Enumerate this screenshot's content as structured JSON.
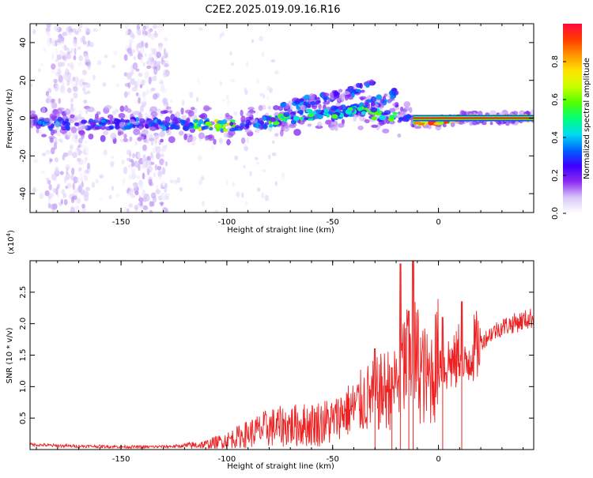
{
  "title": "C2E2.2025.019.09.16.R16",
  "colorbar": {
    "label": "Normalized spectral amplitude",
    "ticks": [
      "0.0",
      "0.2",
      "0.4",
      "0.6",
      "0.8"
    ],
    "tick_values": [
      0.0,
      0.2,
      0.4,
      0.6,
      0.8
    ],
    "colors": [
      "#ffffff",
      "#d8c8f8",
      "#8c2cf0",
      "#3c00ff",
      "#0064ff",
      "#00dcf0",
      "#00ff7a",
      "#50ff00",
      "#c8ff00",
      "#ffe400",
      "#ff9600",
      "#ff3c00",
      "#ff0a3c"
    ]
  },
  "chart_data": [
    {
      "type": "heatmap",
      "title": "C2E2.2025.019.09.16.R16",
      "xlabel": "Height of straight line (km)",
      "ylabel": "Frequency (Hz)",
      "xlim": [
        -193,
        45
      ],
      "ylim": [
        -50,
        50
      ],
      "xticks": [
        -150,
        -100,
        -50,
        0
      ],
      "yticks": [
        -40,
        -20,
        0,
        20,
        40
      ],
      "xtick_labels": [
        "-150",
        "-100",
        "-50",
        "0"
      ],
      "ytick_labels": [
        "-40",
        "-20",
        "0",
        "20",
        "40"
      ],
      "value_range": [
        0,
        1
      ],
      "ridge": {
        "x": [
          -193,
          -160,
          -130,
          -120,
          -100,
          -80,
          -60,
          -40,
          -20,
          -15,
          -12,
          0,
          10,
          20,
          45
        ],
        "y": [
          -3,
          -3,
          -3,
          -3,
          -4,
          -2,
          2,
          4,
          0,
          -1,
          -2,
          -2,
          0,
          0,
          0
        ]
      },
      "branches": [
        {
          "x": [
            -75,
            -55,
            -40,
            -30
          ],
          "y": [
            6,
            10,
            14,
            18
          ]
        },
        {
          "x": [
            -50,
            -35,
            -25,
            -20
          ],
          "y": [
            2,
            6,
            10,
            14
          ]
        }
      ]
    },
    {
      "type": "line",
      "xlabel": "Height of straight line (km)",
      "ylabel": "SNR (10 * v/v)",
      "yscale_label": "(x10",
      "yscale_exp": "4",
      "yscale_close": ")",
      "xlim": [
        -193,
        45
      ],
      "ylim": [
        0,
        30000
      ],
      "xticks": [
        -150,
        -100,
        -50,
        0
      ],
      "yticks": [
        5000,
        10000,
        15000,
        20000,
        25000
      ],
      "xtick_labels": [
        "-150",
        "-100",
        "-50",
        "0"
      ],
      "ytick_labels": [
        "0.5",
        "1.0",
        "1.5",
        "2.0",
        "2.5"
      ],
      "series": [
        {
          "color": "#ee2222",
          "x": [
            -193,
            -180,
            -160,
            -140,
            -125,
            -110,
            -100,
            -90,
            -80,
            -70,
            -60,
            -50,
            -45,
            -40,
            -35,
            -30,
            -25,
            -20,
            -17,
            -13,
            -10,
            -7,
            -5,
            -2,
            0,
            3,
            5,
            8,
            10,
            12,
            15,
            20,
            25,
            30,
            35,
            40,
            45
          ],
          "y": [
            800,
            600,
            500,
            400,
            500,
            800,
            1500,
            2500,
            3500,
            3800,
            4000,
            4500,
            6000,
            6500,
            8000,
            8500,
            9500,
            10500,
            13000,
            15000,
            14000,
            12000,
            11000,
            13000,
            14500,
            13000,
            14000,
            13500,
            16000,
            12000,
            15500,
            17000,
            18500,
            19500,
            20000,
            20500,
            21000
          ]
        }
      ],
      "peaks": [
        {
          "x": -30,
          "y": 16000
        },
        {
          "x": -22,
          "y": 13000
        },
        {
          "x": -18,
          "y": 29500
        },
        {
          "x": -14,
          "y": 22000
        },
        {
          "x": -12,
          "y": 30000
        },
        {
          "x": 2,
          "y": 21000
        },
        {
          "x": 11,
          "y": 23500
        }
      ]
    }
  ]
}
